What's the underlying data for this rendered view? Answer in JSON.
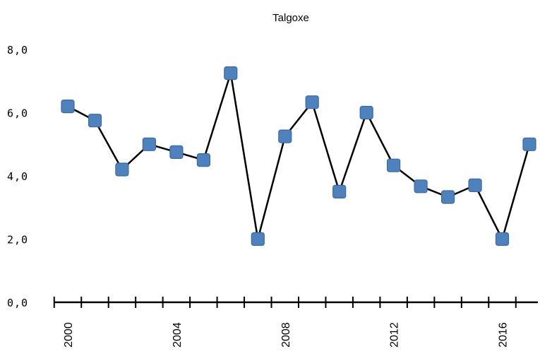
{
  "chart_data": {
    "type": "line",
    "title": "Talgoxe",
    "x": [
      2000,
      2001,
      2002,
      2003,
      2004,
      2005,
      2006,
      2007,
      2008,
      2009,
      2010,
      2011,
      2012,
      2013,
      2014,
      2015,
      2016,
      2017
    ],
    "series": [
      {
        "values": [
          6.2,
          5.75,
          4.2,
          5.0,
          4.75,
          4.5,
          7.25,
          2.0,
          5.25,
          6.33,
          3.5,
          6.0,
          4.33,
          3.67,
          3.33,
          3.7,
          2.0,
          5.0
        ]
      }
    ],
    "ylim": [
      0,
      8
    ],
    "y_ticks": [
      "0,0",
      "2,0",
      "4,0",
      "6,0",
      "8,0"
    ],
    "y_tick_values": [
      0,
      2,
      4,
      6,
      8
    ],
    "x_tick_labels": [
      "2000",
      "2004",
      "2008",
      "2012",
      "2016"
    ],
    "x_tick_values": [
      2000,
      2004,
      2008,
      2012,
      2016
    ],
    "grid": false,
    "legend": "none",
    "colors": {
      "line": "#000000",
      "marker": "#4f81bd",
      "marker_edge": "#3b6aa0",
      "axis": "#000000"
    },
    "marker": "square"
  }
}
